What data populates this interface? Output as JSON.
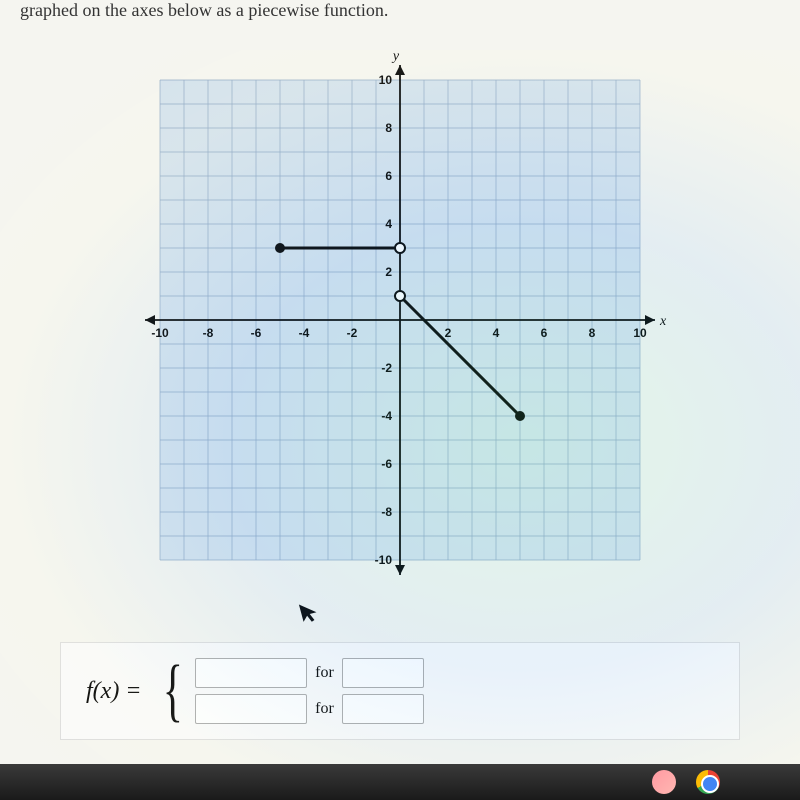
{
  "question": "graphed on the axes below as a piecewise function.",
  "graph": {
    "xmin": -10,
    "xmax": 10,
    "ymin": -10,
    "ymax": 10,
    "tick_step": 2,
    "x_ticks": [
      -10,
      -8,
      -6,
      -4,
      -2,
      2,
      4,
      6,
      8,
      10
    ],
    "y_ticks": [
      -10,
      -8,
      -6,
      -4,
      -2,
      2,
      4,
      6,
      8,
      10
    ],
    "x_label": "x",
    "y_label": "y",
    "grid_color": "#8fa8c4",
    "grid_bg": "#d4e2ed",
    "axis_color": "#000000",
    "label_color": "#000000",
    "label_fontsize": 12,
    "axis_label_fontsize": 14,
    "segments": [
      {
        "from": [
          -5,
          3
        ],
        "to": [
          0,
          3
        ],
        "start_closed": true,
        "end_closed": false
      },
      {
        "from": [
          0,
          1
        ],
        "to": [
          5,
          -4
        ],
        "start_closed": false,
        "end_closed": true
      }
    ],
    "line_color": "#000000",
    "line_width": 3,
    "point_radius": 5
  },
  "answer": {
    "lhs": "f(x) =",
    "for_label": "for"
  },
  "taskbar": {
    "bg_top": "#3a3a3a",
    "bg_bottom": "#1a1a1a"
  }
}
